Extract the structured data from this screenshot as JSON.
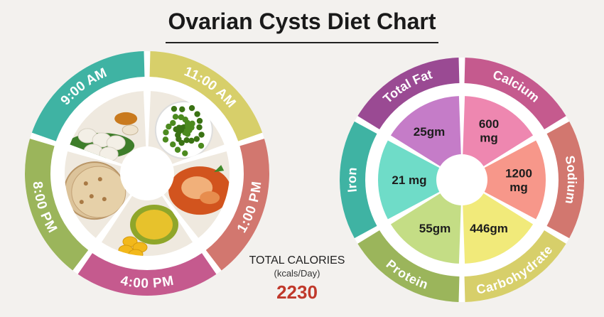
{
  "title": "Ovarian Cysts Diet Chart",
  "meals": [
    {
      "time": "9:00 AM",
      "color": "#3fb3a3",
      "food": "idli-sambar-image"
    },
    {
      "time": "11:00 AM",
      "color": "#d7cf6a",
      "food": "green-peas-image"
    },
    {
      "time": "1:00 PM",
      "color": "#d2776f",
      "food": "fish-curry-image"
    },
    {
      "time": "4:00 PM",
      "color": "#c55a8e",
      "food": "jackfruit-image"
    },
    {
      "time": "8:00 PM",
      "color": "#9bb55b",
      "food": "chapati-image"
    }
  ],
  "nutrients": [
    {
      "name": "Total Fat",
      "value": "25gm",
      "ring_color": "#9a4a93",
      "fill_color": "#c57cc8"
    },
    {
      "name": "Calcium",
      "value": "600 mg",
      "ring_color": "#c55a8e",
      "fill_color": "#ee87b0"
    },
    {
      "name": "Sodium",
      "value": "1200 mg",
      "ring_color": "#d2776f",
      "fill_color": "#f7978a"
    },
    {
      "name": "Carbohydrate",
      "value": "446gm",
      "ring_color": "#d7cf6a",
      "fill_color": "#f1ea7a"
    },
    {
      "name": "Protein",
      "value": "55gm",
      "ring_color": "#9bb55b",
      "fill_color": "#c4dd85"
    },
    {
      "name": "Iron",
      "value": "21 mg",
      "ring_color": "#3fb3a3",
      "fill_color": "#6fdcc8"
    }
  ],
  "total": {
    "label": "TOTAL CALORIES",
    "unit": "(kcals/Day)",
    "value": "2230"
  }
}
